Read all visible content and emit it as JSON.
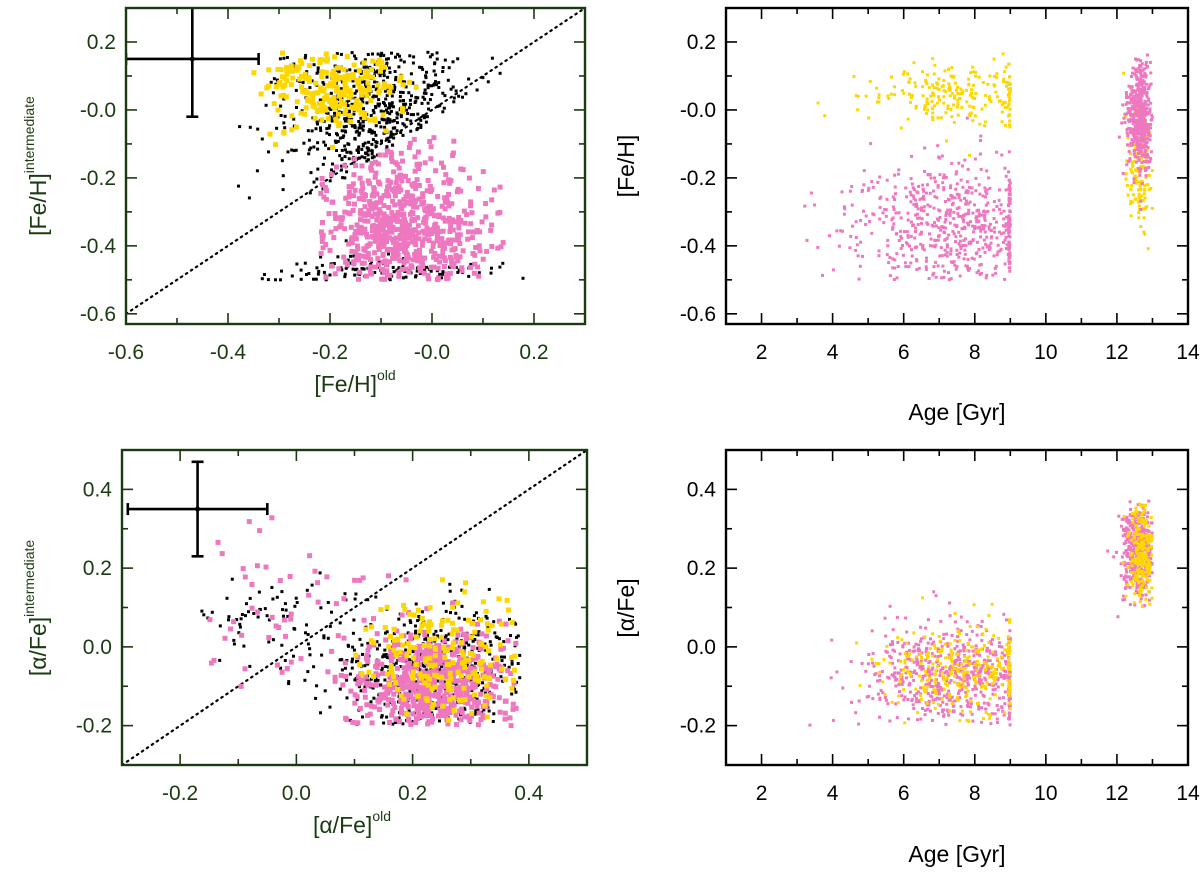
{
  "figure": {
    "colors": {
      "frame_dark": "#1b3a12",
      "frame_black": "#000000",
      "tick_label_dark": "#1b3a12",
      "old_only": "#000000",
      "yellow": "#ffd700",
      "pink": "#ee78c0",
      "errorbar": "#000000",
      "one_to_one": "#000000"
    }
  },
  "chart_data": [
    {
      "id": "feh-comparison",
      "type": "scatter",
      "theme": "dark",
      "xlabel": "[Fe/H]",
      "xlabel_sup": "old",
      "ylabel": "[Fe/H]",
      "ylabel_sup": "intermediate",
      "xlim": [
        -0.6,
        0.3
      ],
      "ylim": [
        -0.63,
        0.3
      ],
      "xticks": [
        -0.6,
        -0.4,
        -0.2,
        0.0,
        0.2
      ],
      "xtick_labels": [
        "-0.6",
        "-0.4",
        "-0.2",
        "-0.0",
        "0.2"
      ],
      "yticks": [
        -0.6,
        -0.4,
        -0.2,
        0.0,
        0.2
      ],
      "ytick_labels": [
        "-0.6",
        "-0.4",
        "-0.2",
        "-0.0",
        "0.2"
      ],
      "one_to_one_line": true,
      "errorbar": {
        "x": -0.47,
        "y": 0.15,
        "xerr_minus": 0.13,
        "xerr_plus": 0.13,
        "yerr_minus": 0.17,
        "yerr_plus": 0.17
      },
      "series": [
        {
          "name": "black",
          "color_key": "old_only",
          "size": 3,
          "count": 700,
          "seed": 11,
          "regions": [
            {
              "cx": -0.1,
              "sx": 0.1,
              "cy": 0.0,
              "sy": 0.13,
              "w": 1.0,
              "rule": "above_diag"
            },
            {
              "cx": -0.12,
              "sx": 0.12,
              "cy": -0.48,
              "sy": 0.03,
              "w": 0.2
            }
          ],
          "xclip": [
            -0.38,
            0.2
          ],
          "yclip": [
            -0.5,
            0.17
          ]
        },
        {
          "name": "yellow",
          "color_key": "yellow",
          "size": 5,
          "count": 230,
          "seed": 23,
          "regions": [
            {
              "cx": -0.2,
              "sx": 0.07,
              "cy": 0.06,
              "sy": 0.06,
              "w": 1.0,
              "rule": "above_diag"
            }
          ],
          "xclip": [
            -0.35,
            0.0
          ],
          "yclip": [
            -0.17,
            0.17
          ]
        },
        {
          "name": "pink",
          "color_key": "pink",
          "size": 5,
          "count": 650,
          "seed": 37,
          "regions": [
            {
              "cx": -0.06,
              "sx": 0.08,
              "cy": -0.35,
              "sy": 0.11,
              "w": 1.0,
              "rule": "below_diag"
            }
          ],
          "xclip": [
            -0.22,
            0.15
          ],
          "yclip": [
            -0.5,
            -0.07
          ]
        }
      ]
    },
    {
      "id": "feh-vs-age",
      "type": "scatter",
      "theme": "black",
      "xlabel": "Age [Gyr]",
      "xlabel_sup": "",
      "ylabel": "[Fe/H]",
      "ylabel_sup": "",
      "xlim": [
        1,
        14
      ],
      "ylim": [
        -0.63,
        0.3
      ],
      "xticks": [
        2,
        4,
        6,
        8,
        10,
        12,
        14
      ],
      "xtick_labels": [
        "2",
        "4",
        "6",
        "8",
        "10",
        "12",
        "14"
      ],
      "yticks": [
        -0.6,
        -0.4,
        -0.2,
        0.0,
        0.2
      ],
      "ytick_labels": [
        "-0.6",
        "-0.4",
        "-0.2",
        "-0.0",
        "0.2"
      ],
      "one_to_one_line": false,
      "series": [
        {
          "name": "yellow",
          "color_key": "yellow",
          "size": 3,
          "count": 380,
          "seed": 41,
          "regions": [
            {
              "cx": 7.5,
              "sx": 1.4,
              "cy": 0.05,
              "sy": 0.05,
              "w": 0.6,
              "xwall": 9.0
            },
            {
              "cx": 12.65,
              "sx": 0.18,
              "cy": -0.17,
              "sy": 0.1,
              "w": 0.4
            }
          ],
          "xclip": [
            3.1,
            13.0
          ],
          "yclip": [
            -0.47,
            0.18
          ]
        },
        {
          "name": "pink",
          "color_key": "pink",
          "size": 3,
          "count": 1100,
          "seed": 53,
          "regions": [
            {
              "cx": 7.3,
              "sx": 1.4,
              "cy": -0.35,
              "sy": 0.1,
              "w": 0.55,
              "xwall": 9.0
            },
            {
              "cx": 12.65,
              "sx": 0.18,
              "cy": -0.02,
              "sy": 0.08,
              "w": 0.45
            }
          ],
          "xclip": [
            3.1,
            13.0
          ],
          "yclip": [
            -0.5,
            0.17
          ]
        }
      ]
    },
    {
      "id": "alphafe-comparison",
      "type": "scatter",
      "theme": "dark",
      "xlabel": "[α/Fe]",
      "xlabel_sup": "old",
      "ylabel": "[α/Fe]",
      "ylabel_sup": "intermediate",
      "xlim": [
        -0.3,
        0.5
      ],
      "ylim": [
        -0.3,
        0.5
      ],
      "xticks": [
        -0.2,
        0.0,
        0.2,
        0.4
      ],
      "xtick_labels": [
        "-0.2",
        "0.0",
        "0.2",
        "0.4"
      ],
      "yticks": [
        -0.2,
        0.0,
        0.2,
        0.4
      ],
      "ytick_labels": [
        "-0.2",
        "0.0",
        "0.2",
        "0.4"
      ],
      "one_to_one_line": true,
      "errorbar": {
        "x": -0.17,
        "y": 0.35,
        "xerr_minus": 0.12,
        "xerr_plus": 0.12,
        "yerr_minus": 0.12,
        "yerr_plus": 0.12
      },
      "series": [
        {
          "name": "black",
          "color_key": "old_only",
          "size": 3,
          "count": 650,
          "seed": 61,
          "regions": [
            {
              "cx": 0.24,
              "sx": 0.08,
              "cy": -0.06,
              "sy": 0.08,
              "w": 0.9
            },
            {
              "cx": -0.05,
              "sx": 0.08,
              "cy": 0.05,
              "sy": 0.06,
              "w": 0.1
            }
          ],
          "xclip": [
            -0.18,
            0.39
          ],
          "yclip": [
            -0.2,
            0.2
          ]
        },
        {
          "name": "pink",
          "color_key": "pink",
          "size": 5,
          "count": 650,
          "seed": 73,
          "regions": [
            {
              "cx": 0.24,
              "sx": 0.07,
              "cy": -0.1,
              "sy": 0.07,
              "w": 0.93
            },
            {
              "cx": 0.0,
              "sx": 0.1,
              "cy": 0.12,
              "sy": 0.1,
              "w": 0.07
            }
          ],
          "xclip": [
            -0.15,
            0.38
          ],
          "yclip": [
            -0.2,
            0.33
          ]
        },
        {
          "name": "yellow",
          "color_key": "yellow",
          "size": 5,
          "count": 190,
          "seed": 83,
          "regions": [
            {
              "cx": 0.26,
              "sx": 0.07,
              "cy": -0.03,
              "sy": 0.08,
              "w": 1.0
            }
          ],
          "xclip": [
            0.1,
            0.38
          ],
          "yclip": [
            -0.19,
            0.18
          ]
        }
      ]
    },
    {
      "id": "alphafe-vs-age",
      "type": "scatter",
      "theme": "black",
      "xlabel": "Age [Gyr]",
      "xlabel_sup": "",
      "ylabel": "[α/Fe]",
      "ylabel_sup": "",
      "xlim": [
        1,
        14
      ],
      "ylim": [
        -0.3,
        0.5
      ],
      "xticks": [
        2,
        4,
        6,
        8,
        10,
        12,
        14
      ],
      "xtick_labels": [
        "2",
        "4",
        "6",
        "8",
        "10",
        "12",
        "14"
      ],
      "yticks": [
        -0.2,
        0.0,
        0.2,
        0.4
      ],
      "ytick_labels": [
        "-0.2",
        "0.0",
        "0.2",
        "0.4"
      ],
      "one_to_one_line": false,
      "series": [
        {
          "name": "pink",
          "color_key": "pink",
          "size": 3,
          "count": 1000,
          "seed": 91,
          "regions": [
            {
              "cx": 7.5,
              "sx": 1.3,
              "cy": -0.08,
              "sy": 0.07,
              "w": 0.6,
              "xwall": 9.0
            },
            {
              "cx": 12.6,
              "sx": 0.25,
              "cy": 0.25,
              "sy": 0.06,
              "w": 0.4
            }
          ],
          "xclip": [
            3.1,
            13.0
          ],
          "yclip": [
            -0.2,
            0.38
          ]
        },
        {
          "name": "yellow",
          "color_key": "yellow",
          "size": 3,
          "count": 500,
          "seed": 97,
          "regions": [
            {
              "cx": 7.8,
              "sx": 1.2,
              "cy": -0.06,
              "sy": 0.06,
              "w": 0.5,
              "xwall": 9.0
            },
            {
              "cx": 12.7,
              "sx": 0.2,
              "cy": 0.24,
              "sy": 0.06,
              "w": 0.5
            }
          ],
          "xclip": [
            3.1,
            13.0
          ],
          "yclip": [
            -0.2,
            0.38
          ]
        }
      ]
    }
  ]
}
